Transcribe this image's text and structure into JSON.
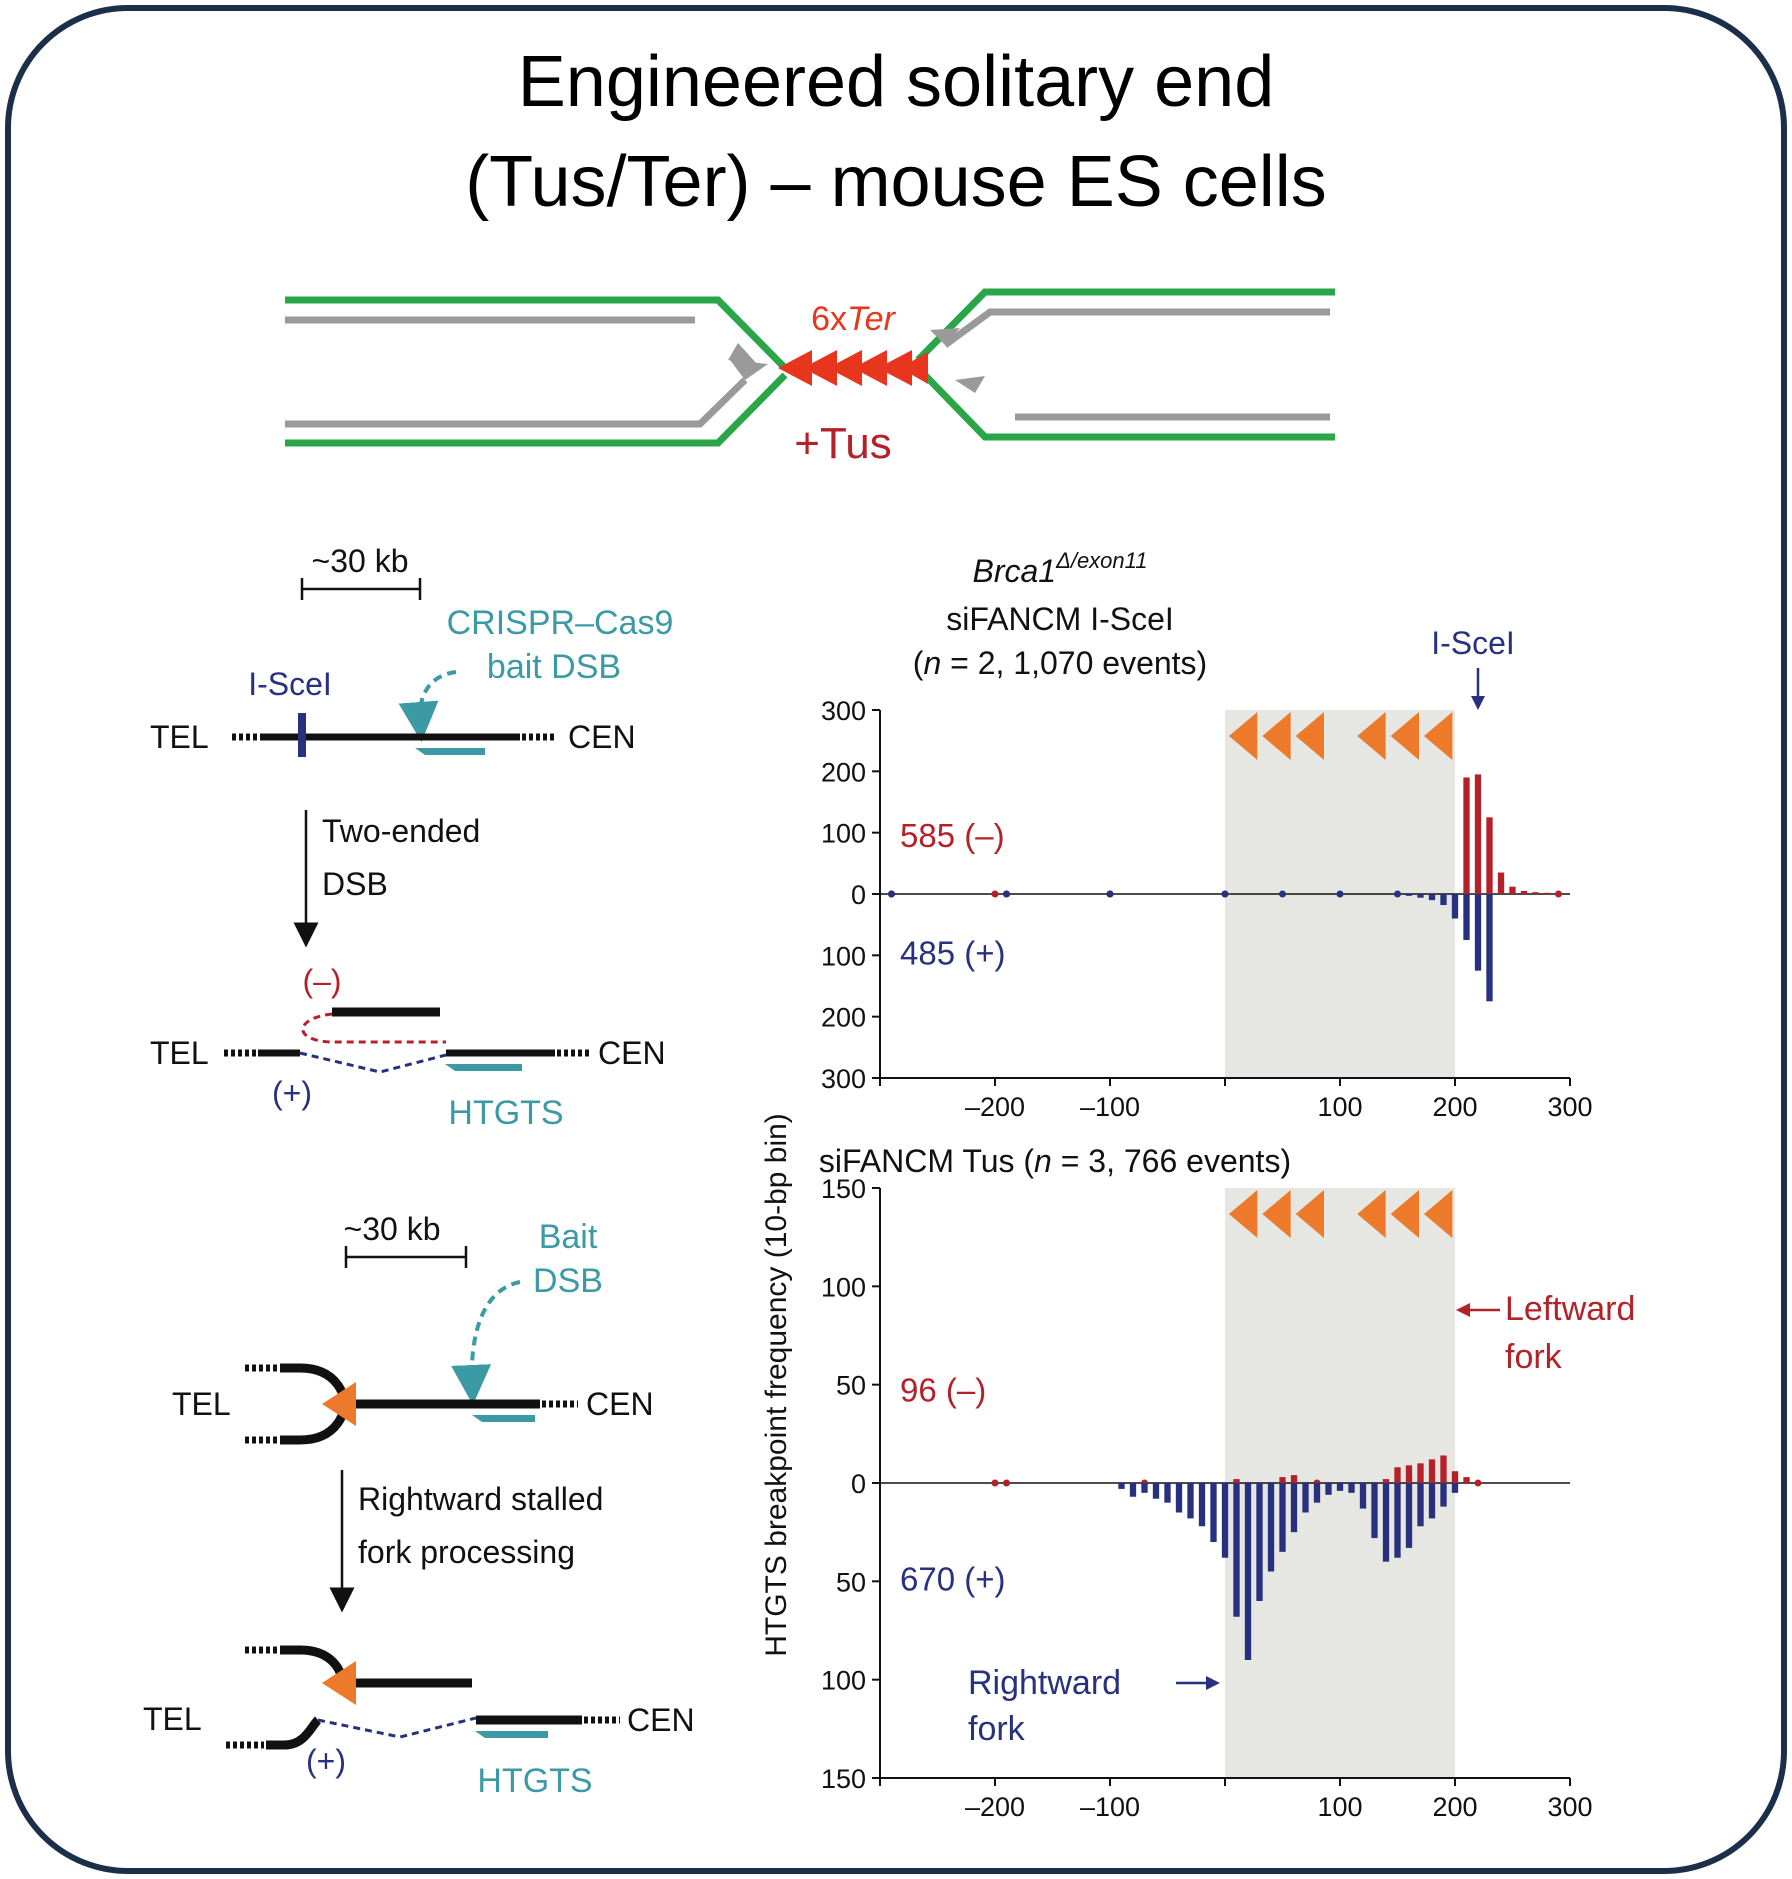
{
  "colors": {
    "frame": "#1c2f4a",
    "green": "#2aa548",
    "gray": "#9a9a9a",
    "ter_red": "#e8361e",
    "red": "#b52129",
    "blue": "#27317f",
    "teal": "#3b9aa3",
    "orange": "#ec7a2a",
    "shade": "#e6e6e2",
    "black": "#111111"
  },
  "title": {
    "line1": "Engineered solitary end",
    "line2": "(Tus/Ter) – mouse ES cells"
  },
  "fork_diagram": {
    "ter_prefix": "6x",
    "ter_italic": "Ter",
    "tus_label": "+Tus"
  },
  "schematic_top": {
    "scale_label": "~30 kb",
    "iscei_label": "I-SceI",
    "crispr_line1": "CRISPR–Cas9",
    "crispr_line2": "bait DSB",
    "tel": "TEL",
    "cen": "CEN",
    "step_line1": "Two-ended",
    "step_line2": "DSB",
    "minus": "(–)",
    "plus": "(+)",
    "htgts": "HTGTS"
  },
  "schematic_bottom": {
    "scale_label": "~30 kb",
    "bait_line1": "Bait",
    "bait_line2": "DSB",
    "tel": "TEL",
    "cen": "CEN",
    "step_line1": "Rightward stalled",
    "step_line2": "fork processing",
    "tel2": "TEL",
    "cen2": "CEN",
    "plus": "(+)",
    "htgts": "HTGTS"
  },
  "y_axis_label": "HTGTS breakpoint frequency (10-bp bin)",
  "chart_data": [
    {
      "type": "bar",
      "title_italic": "Brca1",
      "title_superscript": "Δ/exon11",
      "subtitle": "siFANCM I-SceI",
      "subtitle2_prefix": "(",
      "subtitle2_n": "n",
      "subtitle2_rest": " = 2, 1,070 events)",
      "xlabel": "",
      "ylabel": "HTGTS breakpoint frequency (10-bp bin)",
      "xlim": [
        -300,
        300
      ],
      "ylim": [
        -300,
        300
      ],
      "yticks": [
        300,
        200,
        100,
        0,
        100,
        200,
        300
      ],
      "xticks": [
        "–200",
        "–100",
        "100",
        "200",
        "300"
      ],
      "shaded_region": [
        0,
        200
      ],
      "ter_sites": 6,
      "annotation": "I-SceI",
      "minus_label": "585 (–)",
      "plus_label": "485 (+)",
      "series": [
        {
          "name": "(–)",
          "x": [
            -290,
            -200,
            -190,
            -100,
            0,
            210,
            220,
            230,
            240,
            250,
            260,
            270,
            280,
            290
          ],
          "values": [
            0,
            0,
            0,
            0,
            0,
            190,
            195,
            125,
            35,
            12,
            5,
            3,
            2,
            1
          ]
        },
        {
          "name": "(+)",
          "x": [
            -290,
            -190,
            -100,
            0,
            50,
            100,
            150,
            160,
            170,
            180,
            190,
            200,
            210,
            220,
            230
          ],
          "values": [
            0,
            0,
            0,
            0,
            0,
            0,
            0,
            -3,
            -6,
            -10,
            -18,
            -40,
            -75,
            -125,
            -175
          ]
        }
      ]
    },
    {
      "type": "bar",
      "title_prefix": "siFANCM Tus (",
      "title_n": "n",
      "title_rest": " = 3, 766 events)",
      "xlabel": "",
      "ylabel": "HTGTS breakpoint frequency (10-bp bin)",
      "xlim": [
        -300,
        300
      ],
      "ylim": [
        -150,
        150
      ],
      "yticks": [
        150,
        100,
        50,
        0,
        50,
        100,
        150
      ],
      "xticks": [
        "–200",
        "–100",
        "100",
        "200",
        "300"
      ],
      "shaded_region": [
        0,
        200
      ],
      "ter_sites": 6,
      "minus_label": "96 (–)",
      "plus_label": "670 (+)",
      "leftward_line1": "Leftward",
      "leftward_line2": "fork",
      "rightward_line1": "Rightward",
      "rightward_line2": "fork",
      "series": [
        {
          "name": "(–)",
          "x": [
            -200,
            -190,
            -70,
            10,
            50,
            60,
            80,
            140,
            150,
            160,
            170,
            180,
            190,
            200,
            210,
            220
          ],
          "values": [
            0,
            0,
            1,
            2,
            3,
            4,
            1,
            2,
            8,
            9,
            10,
            12,
            14,
            6,
            3,
            1
          ]
        },
        {
          "name": "(+)",
          "x": [
            -90,
            -80,
            -70,
            -60,
            -50,
            -40,
            -30,
            -20,
            -10,
            0,
            10,
            20,
            30,
            40,
            50,
            60,
            70,
            80,
            90,
            100,
            110,
            120,
            130,
            140,
            150,
            160,
            170,
            180,
            190,
            200
          ],
          "values": [
            -3,
            -7,
            -5,
            -8,
            -10,
            -15,
            -18,
            -22,
            -30,
            -38,
            -68,
            -90,
            -60,
            -45,
            -35,
            -25,
            -15,
            -10,
            -6,
            -4,
            -5,
            -13,
            -28,
            -40,
            -38,
            -33,
            -22,
            -18,
            -12,
            -5
          ]
        }
      ]
    }
  ]
}
